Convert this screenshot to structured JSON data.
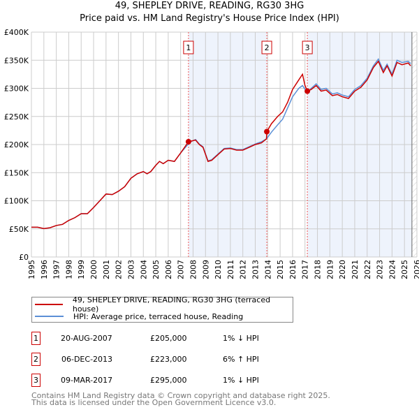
{
  "chart_data": {
    "type": "line",
    "title": "49, SHEPLEY DRIVE, READING, RG30 3HG",
    "subtitle": "Price paid vs. HM Land Registry's House Price Index (HPI)",
    "xlim": [
      1995,
      2026
    ],
    "ylim": [
      0,
      400000
    ],
    "x_ticks": [
      "1995",
      "1996",
      "1997",
      "1998",
      "1999",
      "2000",
      "2001",
      "2002",
      "2003",
      "2004",
      "2005",
      "2006",
      "2007",
      "2008",
      "2009",
      "2010",
      "2011",
      "2012",
      "2013",
      "2014",
      "2015",
      "2016",
      "2017",
      "2018",
      "2019",
      "2020",
      "2021",
      "2022",
      "2023",
      "2024",
      "2025",
      "2026"
    ],
    "y_ticks": [
      {
        "v": 0,
        "label": "£0"
      },
      {
        "v": 50000,
        "label": "£50K"
      },
      {
        "v": 100000,
        "label": "£100K"
      },
      {
        "v": 150000,
        "label": "£150K"
      },
      {
        "v": 200000,
        "label": "£200K"
      },
      {
        "v": 250000,
        "label": "£250K"
      },
      {
        "v": 300000,
        "label": "£300K"
      },
      {
        "v": 350000,
        "label": "£350K"
      },
      {
        "v": 400000,
        "label": "£400K"
      }
    ],
    "grid": true,
    "shaded_ranges": [
      [
        2007.63,
        2013.93
      ],
      [
        2017.19,
        2025.6
      ]
    ],
    "hatched_from": 2025.6,
    "series": [
      {
        "name": "49, SHEPLEY DRIVE, READING, RG30 3HG (terraced house)",
        "color": "#cc0000",
        "points": [
          [
            1995,
            53000
          ],
          [
            1995.5,
            53000
          ],
          [
            1996,
            50500
          ],
          [
            1996.5,
            52000
          ],
          [
            1997,
            56000
          ],
          [
            1997.5,
            58000
          ],
          [
            1998,
            65000
          ],
          [
            1998.5,
            70000
          ],
          [
            1999,
            77000
          ],
          [
            1999.5,
            77000
          ],
          [
            2000,
            88000
          ],
          [
            2000.5,
            100000
          ],
          [
            2001,
            112000
          ],
          [
            2001.5,
            111000
          ],
          [
            2002,
            117000
          ],
          [
            2002.5,
            125000
          ],
          [
            2003,
            140000
          ],
          [
            2003.5,
            148000
          ],
          [
            2004,
            152000
          ],
          [
            2004.3,
            148000
          ],
          [
            2004.6,
            152000
          ],
          [
            2005,
            163000
          ],
          [
            2005.3,
            170000
          ],
          [
            2005.6,
            166000
          ],
          [
            2006,
            172000
          ],
          [
            2006.5,
            170000
          ],
          [
            2007,
            185000
          ],
          [
            2007.63,
            205000
          ],
          [
            2008.2,
            208000
          ],
          [
            2008.5,
            200000
          ],
          [
            2008.8,
            195000
          ],
          [
            2009.2,
            170000
          ],
          [
            2009.5,
            172000
          ],
          [
            2010,
            182000
          ],
          [
            2010.5,
            192000
          ],
          [
            2011,
            193000
          ],
          [
            2011.5,
            190000
          ],
          [
            2012,
            190000
          ],
          [
            2012.5,
            195000
          ],
          [
            2013,
            200000
          ],
          [
            2013.5,
            203000
          ],
          [
            2013.9,
            210000
          ],
          [
            2013.93,
            223000
          ],
          [
            2014.3,
            237000
          ],
          [
            2014.8,
            250000
          ],
          [
            2015.2,
            258000
          ],
          [
            2015.6,
            275000
          ],
          [
            2016,
            298000
          ],
          [
            2016.5,
            315000
          ],
          [
            2016.8,
            325000
          ],
          [
            2017.0,
            305000
          ],
          [
            2017.19,
            295000
          ],
          [
            2017.5,
            298000
          ],
          [
            2017.9,
            305000
          ],
          [
            2018.3,
            295000
          ],
          [
            2018.7,
            297000
          ],
          [
            2019.2,
            287000
          ],
          [
            2019.6,
            289000
          ],
          [
            2020,
            285000
          ],
          [
            2020.5,
            282000
          ],
          [
            2021,
            295000
          ],
          [
            2021.5,
            302000
          ],
          [
            2022,
            315000
          ],
          [
            2022.5,
            337000
          ],
          [
            2022.9,
            348000
          ],
          [
            2023.3,
            328000
          ],
          [
            2023.6,
            340000
          ],
          [
            2024,
            322000
          ],
          [
            2024.4,
            346000
          ],
          [
            2024.8,
            342000
          ],
          [
            2025.3,
            345000
          ],
          [
            2025.5,
            340000
          ]
        ]
      },
      {
        "name": "HPI: Average price, terraced house, Reading",
        "color": "#5b8fd6",
        "points": [
          [
            1995,
            53000
          ],
          [
            1995.5,
            53000
          ],
          [
            1996,
            50500
          ],
          [
            1996.5,
            52000
          ],
          [
            1997,
            56000
          ],
          [
            1997.5,
            58000
          ],
          [
            1998,
            65000
          ],
          [
            1998.5,
            70000
          ],
          [
            1999,
            77000
          ],
          [
            1999.5,
            77000
          ],
          [
            2000,
            88000
          ],
          [
            2000.5,
            100000
          ],
          [
            2001,
            112000
          ],
          [
            2001.5,
            111000
          ],
          [
            2002,
            117000
          ],
          [
            2002.5,
            125000
          ],
          [
            2003,
            140000
          ],
          [
            2003.5,
            148000
          ],
          [
            2004,
            152000
          ],
          [
            2004.3,
            148000
          ],
          [
            2004.6,
            152000
          ],
          [
            2005,
            163000
          ],
          [
            2005.3,
            170000
          ],
          [
            2005.6,
            166000
          ],
          [
            2006,
            172000
          ],
          [
            2006.5,
            170000
          ],
          [
            2007,
            185000
          ],
          [
            2007.5,
            198000
          ],
          [
            2007.8,
            205000
          ],
          [
            2008.2,
            209000
          ],
          [
            2008.5,
            201000
          ],
          [
            2008.8,
            196000
          ],
          [
            2009.2,
            171000
          ],
          [
            2009.5,
            173000
          ],
          [
            2010,
            183000
          ],
          [
            2010.5,
            193000
          ],
          [
            2011,
            194000
          ],
          [
            2011.5,
            191000
          ],
          [
            2012,
            191000
          ],
          [
            2012.5,
            196000
          ],
          [
            2013,
            201000
          ],
          [
            2013.5,
            205000
          ],
          [
            2013.9,
            210000
          ],
          [
            2014.3,
            222000
          ],
          [
            2014.8,
            235000
          ],
          [
            2015.2,
            245000
          ],
          [
            2015.6,
            265000
          ],
          [
            2016,
            285000
          ],
          [
            2016.5,
            300000
          ],
          [
            2016.8,
            305000
          ],
          [
            2017.19,
            292000
          ],
          [
            2017.5,
            300000
          ],
          [
            2017.9,
            308000
          ],
          [
            2018.3,
            298000
          ],
          [
            2018.7,
            300000
          ],
          [
            2019.2,
            290000
          ],
          [
            2019.6,
            292000
          ],
          [
            2020,
            288000
          ],
          [
            2020.5,
            285000
          ],
          [
            2021,
            298000
          ],
          [
            2021.5,
            305000
          ],
          [
            2022,
            318000
          ],
          [
            2022.5,
            340000
          ],
          [
            2022.9,
            352000
          ],
          [
            2023.3,
            332000
          ],
          [
            2023.6,
            343000
          ],
          [
            2024,
            325000
          ],
          [
            2024.4,
            350000
          ],
          [
            2024.8,
            346000
          ],
          [
            2025.3,
            348000
          ],
          [
            2025.5,
            344000
          ]
        ]
      }
    ],
    "sales": [
      {
        "label": "1",
        "x": 2007.63,
        "y": 205000,
        "date": "20-AUG-2007",
        "price": "£205,000",
        "hpi": "1% ↓ HPI"
      },
      {
        "label": "2",
        "x": 2013.93,
        "y": 223000,
        "date": "06-DEC-2013",
        "price": "£223,000",
        "hpi": "6% ↑ HPI"
      },
      {
        "label": "3",
        "x": 2017.19,
        "y": 295000,
        "date": "09-MAR-2017",
        "price": "£295,000",
        "hpi": "1% ↓ HPI"
      }
    ]
  },
  "footer": {
    "line1": "Contains HM Land Registry data © Crown copyright and database right 2025.",
    "line2": "This data is licensed under the Open Government Licence v3.0."
  }
}
